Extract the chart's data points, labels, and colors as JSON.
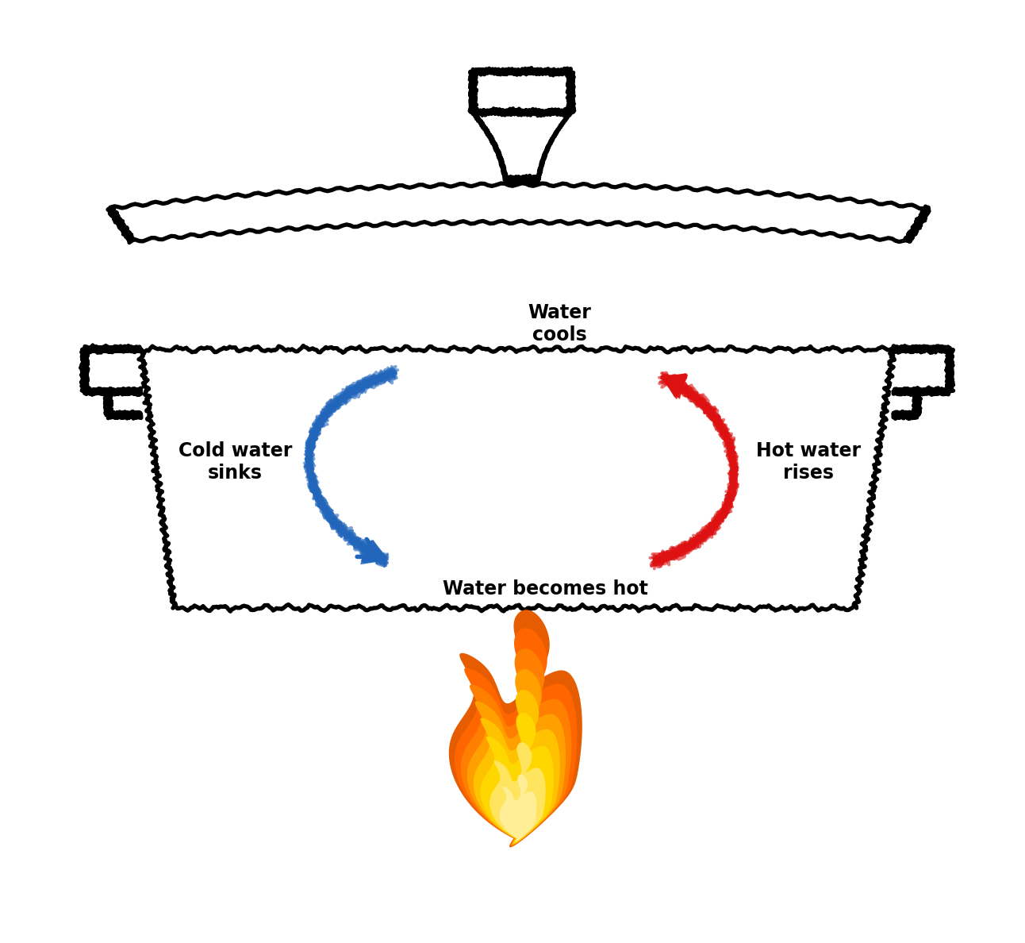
{
  "background_color": "#ffffff",
  "pot_color": "#000000",
  "blue_arrow_color": "#2266bb",
  "red_arrow_color": "#dd1111",
  "text_color": "#000000",
  "label_water_cools": "Water\ncools",
  "label_cold_water_sinks": "Cold water\nsinks",
  "label_hot_water_rises": "Hot water\nrises",
  "label_water_becomes_hot": "Water becomes hot",
  "figsize": [
    12.92,
    11.88
  ]
}
